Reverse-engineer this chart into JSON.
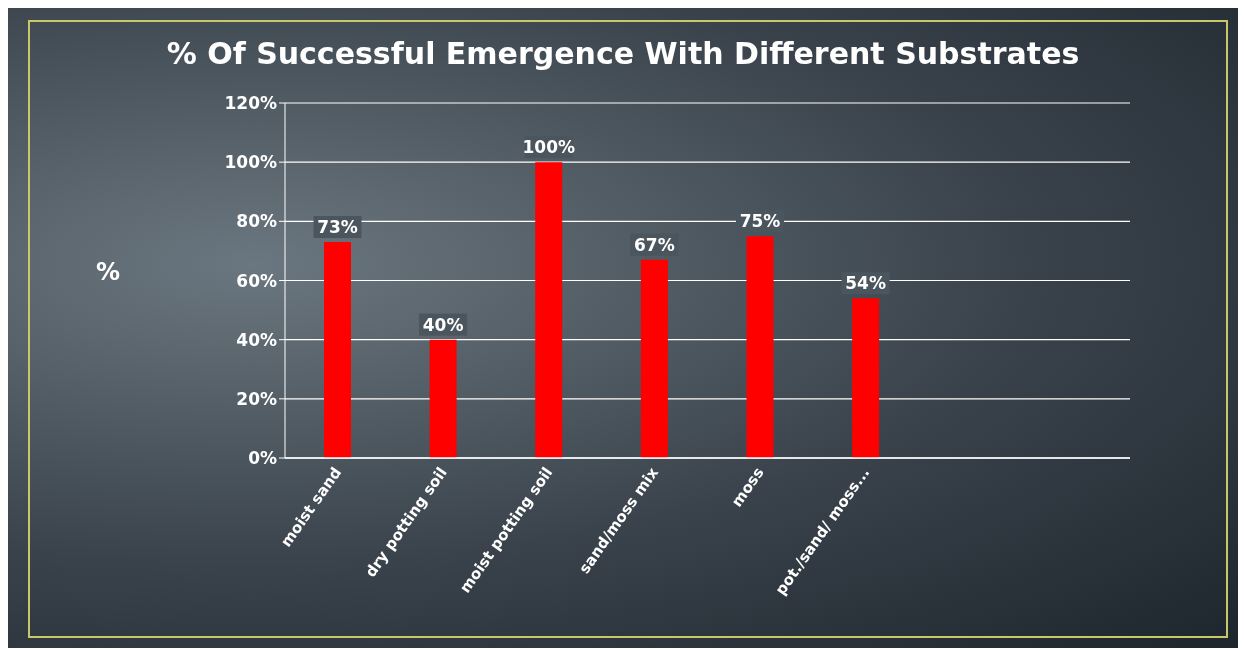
{
  "chart_data": {
    "type": "bar",
    "title": "% Of Successful Emergence With Different Substrates",
    "ylabel": "%",
    "categories": [
      "moist sand",
      "dry potting soil",
      "moist potting soil",
      "sand/moss mix",
      "moss",
      "pot./sand/ moss...",
      null,
      null
    ],
    "values": [
      73,
      40,
      100,
      67,
      75,
      54,
      null,
      null
    ],
    "value_labels": [
      "73%",
      "40%",
      "100%",
      "67%",
      "75%",
      "54%",
      null,
      null
    ],
    "color": "#ff0000",
    "ylim": [
      0,
      120
    ],
    "yticks": [
      {
        "value": 0,
        "label": "0%"
      },
      {
        "value": 20,
        "label": "20%"
      },
      {
        "value": 40,
        "label": "40%"
      },
      {
        "value": 60,
        "label": "60%"
      },
      {
        "value": 80,
        "label": "80%"
      },
      {
        "value": 100,
        "label": "100%"
      },
      {
        "value": 120,
        "label": "120%"
      }
    ],
    "grid": "y",
    "legend": false
  }
}
